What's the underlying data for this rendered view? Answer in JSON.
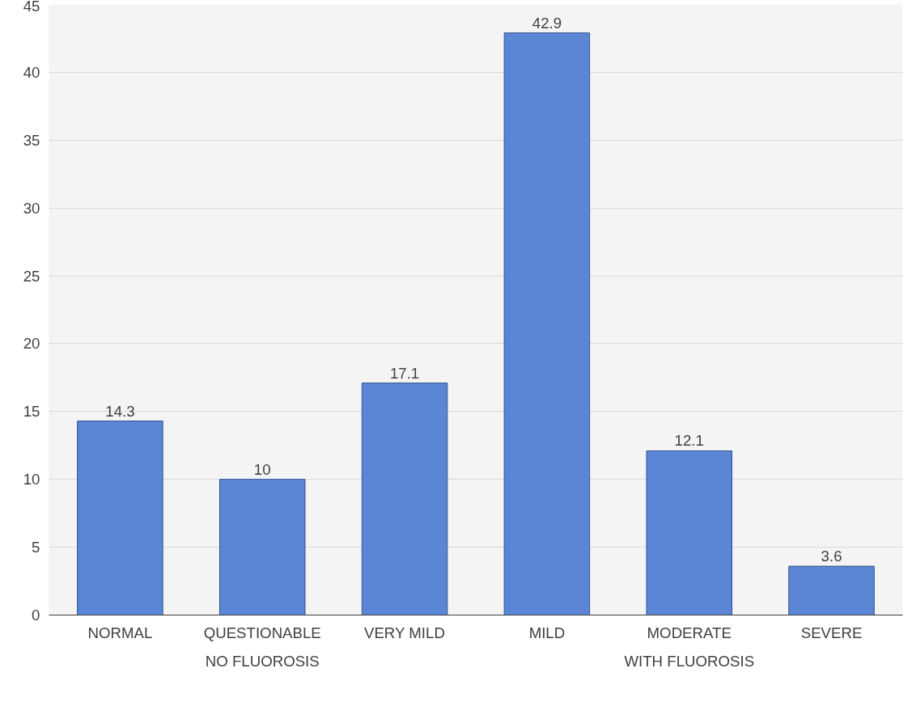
{
  "chart_data": {
    "type": "bar",
    "categories": [
      "NORMAL",
      "QUESTIONABLE",
      "VERY MILD",
      "MILD",
      "MODERATE",
      "SEVERE"
    ],
    "values": [
      14.3,
      10,
      17.1,
      42.9,
      12.1,
      3.6
    ],
    "color": "#5b86d6",
    "ylim": [
      0,
      45
    ],
    "yticks": [
      0,
      5,
      10,
      15,
      20,
      25,
      30,
      35,
      40,
      45
    ],
    "grid": "y",
    "data_labels": true,
    "annotations": [
      "NO FLUOROSIS",
      "WITH FLUOROSIS"
    ]
  }
}
